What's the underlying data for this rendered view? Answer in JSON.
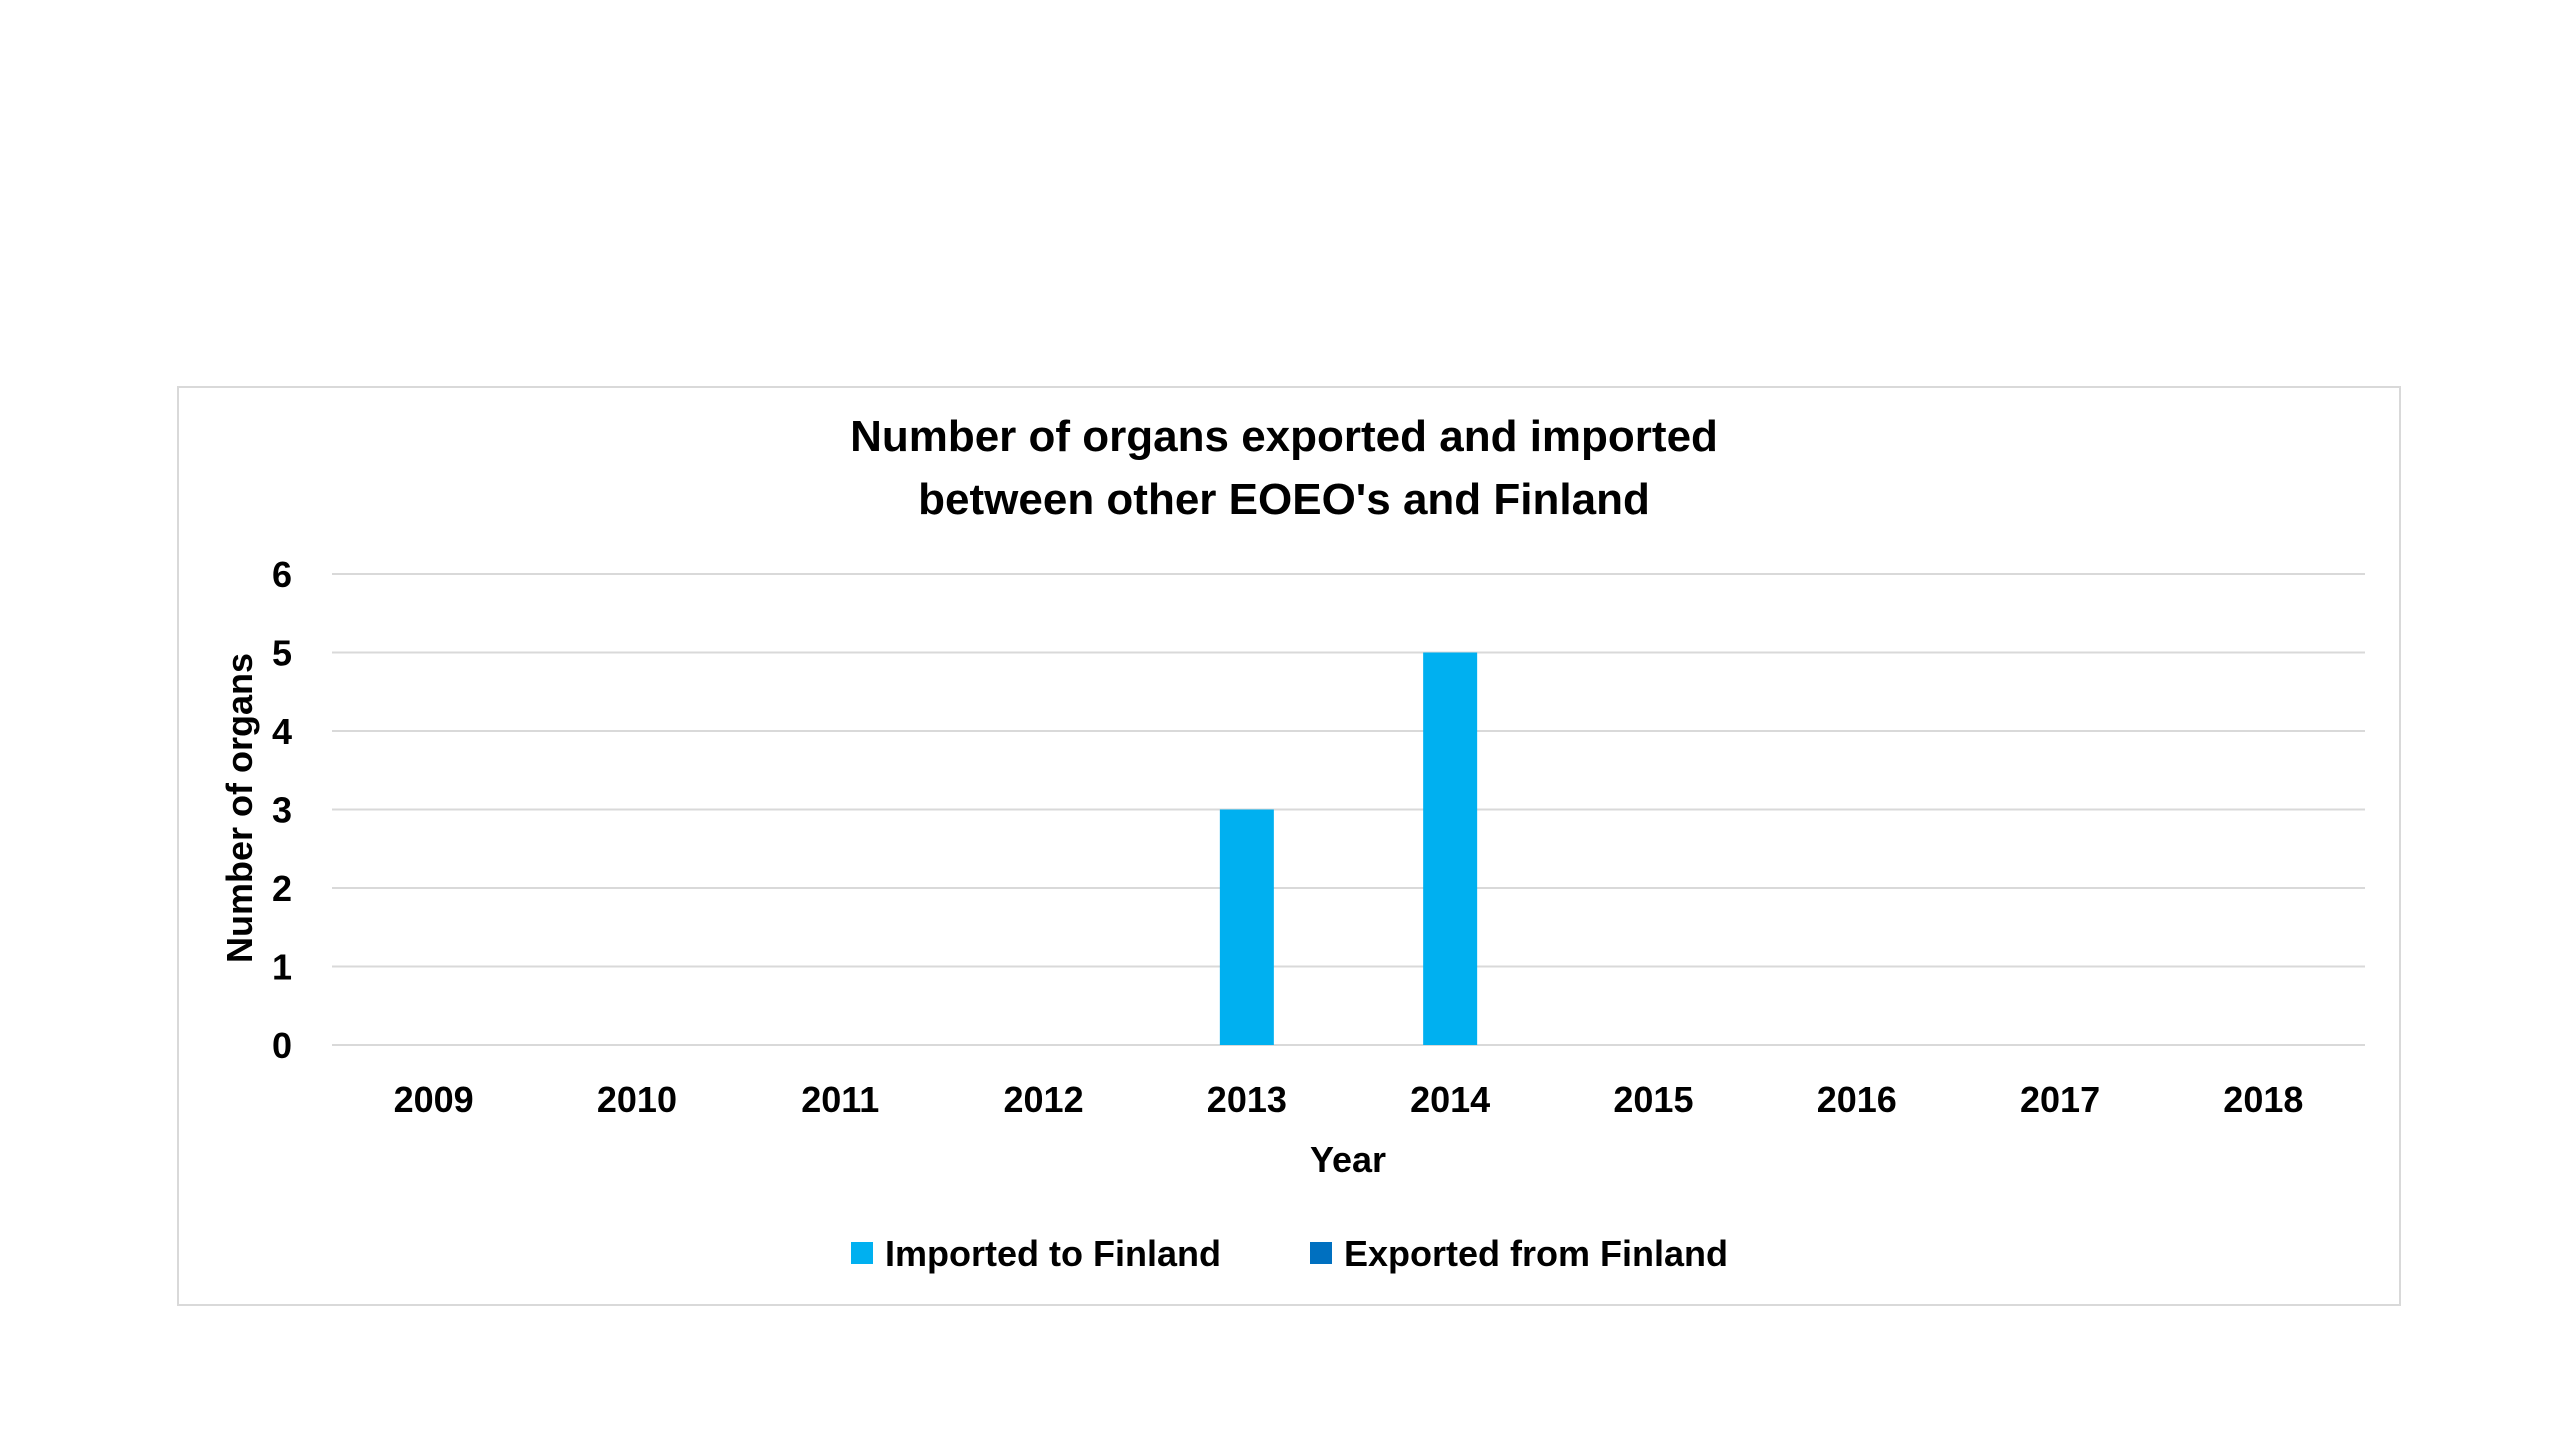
{
  "chart_data": {
    "type": "bar",
    "title_lines": [
      "Number of organs exported and imported",
      "between other EOEO's and Finland"
    ],
    "xlabel": "Year",
    "ylabel": "Number of organs",
    "categories": [
      "2009",
      "2010",
      "2011",
      "2012",
      "2013",
      "2014",
      "2015",
      "2016",
      "2017",
      "2018"
    ],
    "series": [
      {
        "name": "Imported to Finland",
        "color": "#00b0f0",
        "values": [
          0,
          0,
          0,
          0,
          3,
          5,
          0,
          0,
          0,
          0
        ]
      },
      {
        "name": "Exported from Finland",
        "color": "#0070c0",
        "values": [
          0,
          0,
          0,
          0,
          0,
          0,
          0,
          0,
          0,
          0
        ]
      }
    ],
    "ylim": [
      0,
      6
    ],
    "yticks": [
      "0",
      "1",
      "2",
      "3",
      "4",
      "5",
      "6"
    ],
    "grid": true,
    "legend_position": "bottom"
  }
}
